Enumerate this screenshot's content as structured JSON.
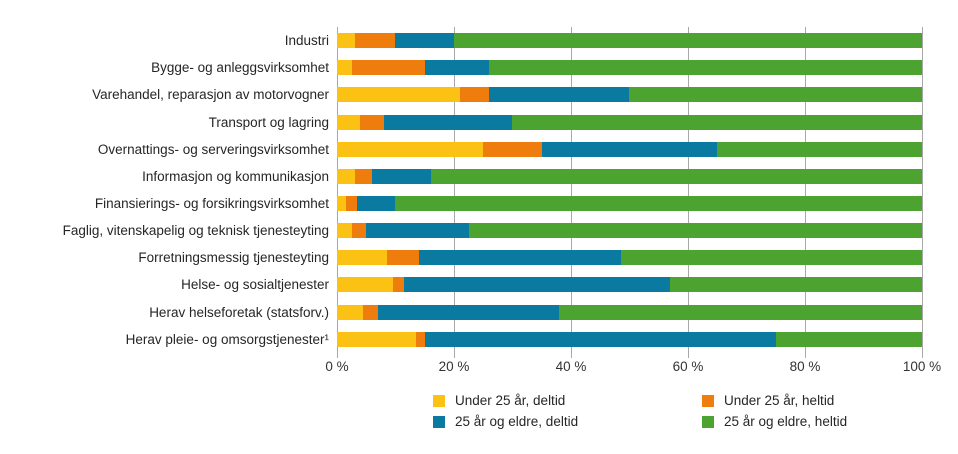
{
  "page": {
    "background": "#FFFFFF"
  },
  "style": {
    "gridline_color": "#A8A8A8",
    "category_text_color": "#262626",
    "axis_text_color": "#333333",
    "legend_text_color": "#262626"
  },
  "chart_data": {
    "type": "bar",
    "orientation": "horizontal",
    "stacked": true,
    "unit": "%",
    "title": "",
    "xlabel": "",
    "ylabel": "",
    "xlim": [
      0,
      100
    ],
    "grid": true,
    "legend_position": "bottom",
    "x_tick_values": [
      0,
      20,
      40,
      60,
      80,
      100
    ],
    "x_tick_labels": [
      "0 %",
      "20 %",
      "40 %",
      "60 %",
      "80 %",
      "100 %"
    ],
    "categories": [
      "Industri",
      "Bygge- og anleggsvirksomhet",
      "Varehandel, reparasjon av motorvogner",
      "Transport og lagring",
      "Overnattings- og serveringsvirksomhet",
      "Informasjon og kommunikasjon",
      "Finansierings- og forsikringsvirksomhet",
      "Faglig, vitenskapelig og teknisk tjenesteyting",
      "Forretningsmessig tjenesteyting",
      "Helse- og sosialtjenester",
      "Herav helseforetak (statsforv.)",
      "Herav pleie- og omsorgstjenester¹"
    ],
    "series": [
      {
        "name": "Under 25 år, deltid",
        "color": "#FCC213",
        "values": [
          3,
          2.5,
          21,
          4,
          25,
          3,
          1.5,
          2.5,
          8.5,
          9.5,
          4.5,
          13.5
        ]
      },
      {
        "name": "Under 25 år, heltid",
        "color": "#EF7D0D",
        "values": [
          7,
          12.5,
          5,
          4,
          10,
          3,
          2,
          2.5,
          5.5,
          2,
          2.5,
          1.5
        ]
      },
      {
        "name": "25 år og eldre, deltid",
        "color": "#0A7AA1",
        "values": [
          10,
          11,
          24,
          22,
          30,
          10,
          6.5,
          17.5,
          34.5,
          45.5,
          31,
          60
        ]
      },
      {
        "name": "25 år og eldre, heltid",
        "color": "#4DA32F",
        "values": [
          80,
          74,
          50,
          70,
          35,
          84,
          90,
          77.5,
          51.5,
          43,
          62,
          25
        ]
      }
    ],
    "legend_order": [
      0,
      1,
      2,
      3
    ]
  }
}
